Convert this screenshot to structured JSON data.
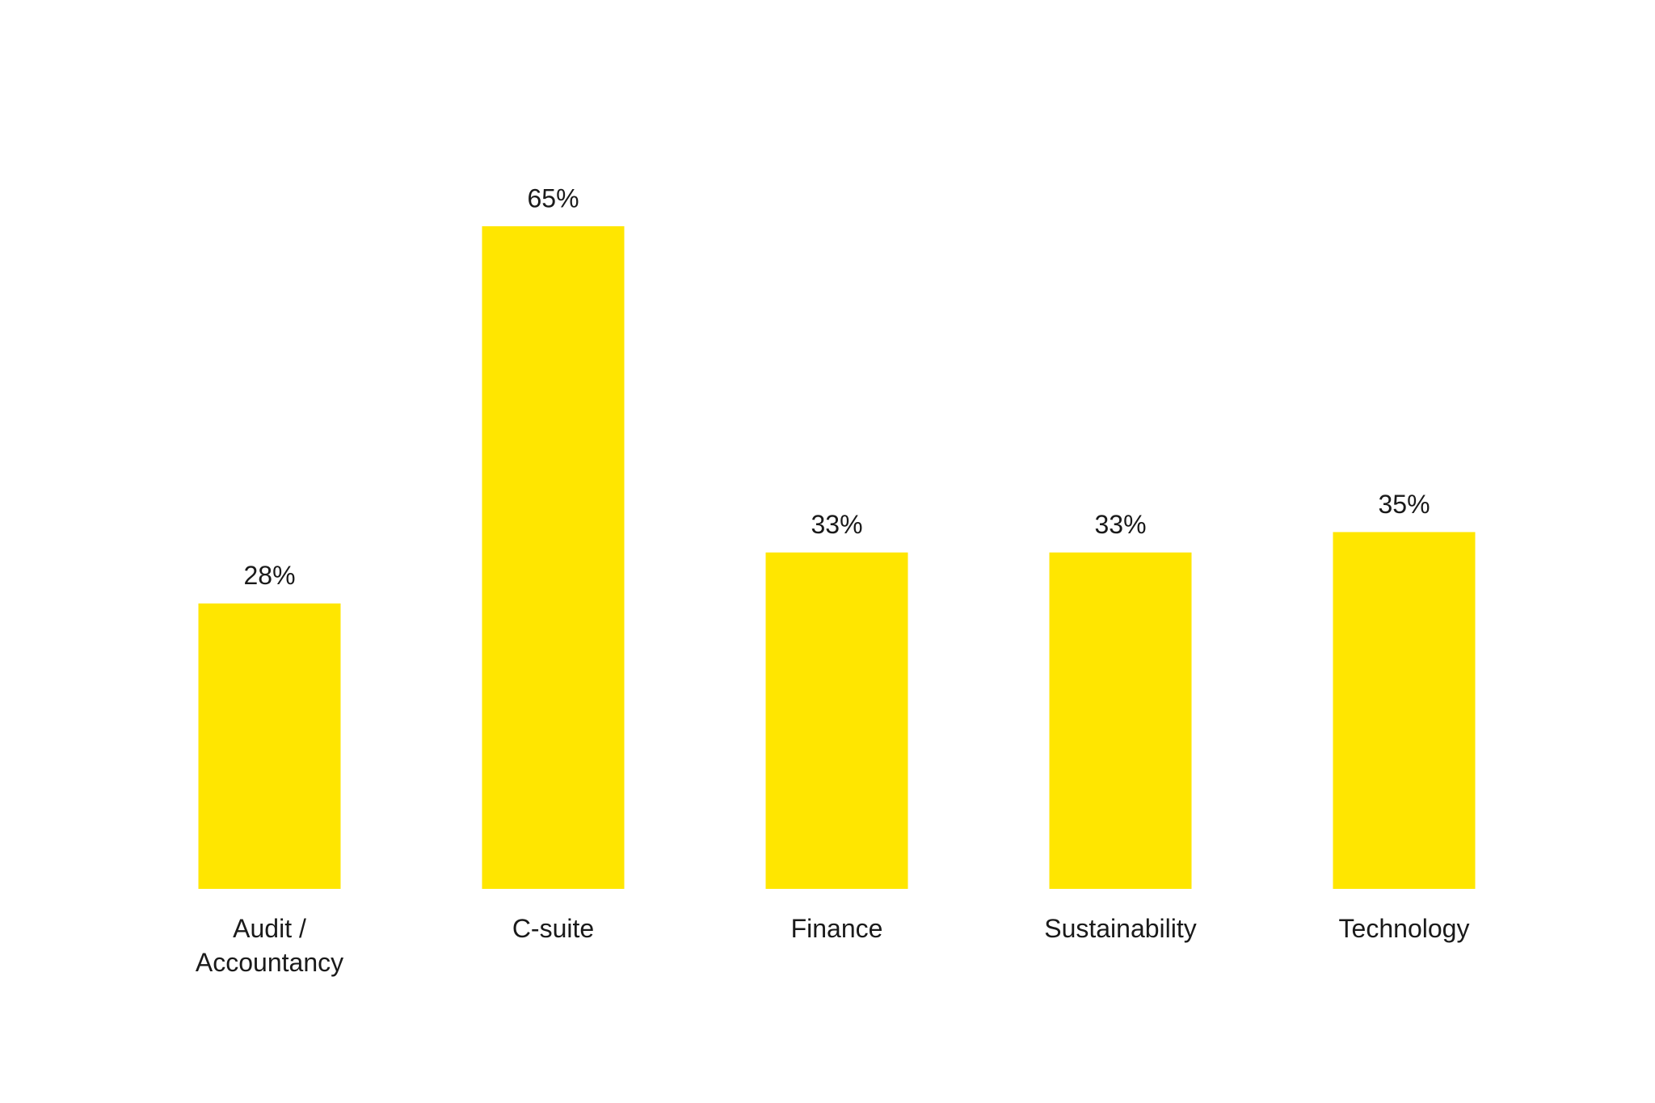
{
  "chart_data": {
    "type": "bar",
    "categories": [
      "Audit / Accountancy",
      "C-suite",
      "Finance",
      "Sustainability",
      "Technology"
    ],
    "values": [
      28,
      65,
      33,
      33,
      35
    ],
    "value_labels": [
      "28%",
      "65%",
      "33%",
      "33%",
      "35%"
    ],
    "color": "#ffe600"
  }
}
